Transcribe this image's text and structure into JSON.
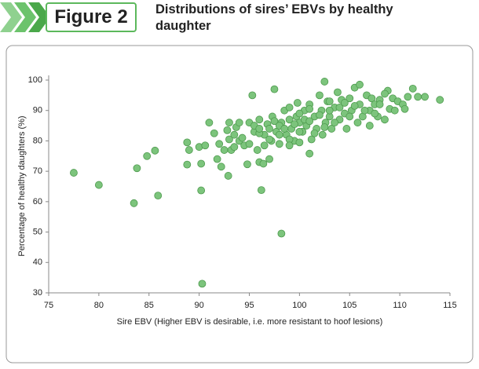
{
  "header": {
    "figure": "Figure 2"
  },
  "chart_data": {
    "type": "scatter",
    "title": "Distributions of sires’ EBVs by healthy daughter",
    "xlabel": "Sire EBV (Higher EBV is desirable, i.e. more resistant to hoof lesions)",
    "ylabel": "Percentage of healthy daughters (%)",
    "color": "#7cc47c",
    "xlim": [
      75,
      115
    ],
    "xticks": [
      75,
      80,
      85,
      90,
      95,
      100,
      105,
      110,
      115
    ],
    "ylim": [
      30,
      100
    ],
    "yticks": [
      30,
      40,
      50,
      60,
      70,
      80,
      90,
      100
    ],
    "x": [
      77.5,
      80,
      83.5,
      83.8,
      84.8,
      85.6,
      85.9,
      88.8,
      88.8,
      89,
      90,
      90.2,
      90.2,
      90.3,
      90.6,
      91,
      91.5,
      91.8,
      92,
      92.2,
      92.5,
      92.8,
      92.9,
      93,
      93,
      93.2,
      93.5,
      93.7,
      94,
      94.3,
      94.5,
      94.8,
      95,
      95,
      95.3,
      95.5,
      95.8,
      96,
      96,
      96.2,
      96.4,
      96.5,
      96.8,
      97,
      97.2,
      97.3,
      97.5,
      97.7,
      98,
      98.2,
      98.2,
      98.5,
      98.7,
      99,
      99.2,
      99.5,
      99.7,
      99.8,
      100,
      100,
      100.3,
      100.5,
      100.7,
      101,
      101,
      101.2,
      101.5,
      101.7,
      102,
      102.2,
      102.3,
      102.5,
      102.6,
      102.8,
      103,
      103.2,
      103.5,
      103.8,
      104,
      104.2,
      104.5,
      104.7,
      105,
      105.2,
      105.5,
      105.8,
      106,
      106,
      106.3,
      106.7,
      107,
      107,
      107.2,
      107.5,
      107.8,
      108,
      108.5,
      108.8,
      109,
      109.3,
      109.8,
      110.3,
      110.5,
      110.8,
      111.3,
      111.8,
      112.5,
      114,
      95.5,
      96,
      96.5,
      97,
      97.5,
      98,
      98.5,
      99,
      99.5,
      100,
      100.5,
      101,
      101.5,
      102,
      102.5,
      103,
      103.5,
      104,
      104.5,
      105,
      105.5,
      106.5,
      107.5,
      108,
      108.5,
      109.5,
      99,
      100,
      101,
      103,
      97,
      98,
      99,
      96,
      94,
      93.5
    ],
    "y": [
      69.5,
      65.5,
      59.5,
      71,
      75,
      76.8,
      62,
      79.5,
      72.2,
      77,
      78,
      72.5,
      63.7,
      33,
      78.5,
      86,
      82.5,
      74,
      79,
      71.5,
      77,
      83.5,
      68.5,
      86,
      80.5,
      77,
      82,
      84.5,
      80,
      81,
      78.5,
      72.3,
      86,
      79,
      95,
      83,
      77,
      87,
      73,
      63.8,
      72.5,
      82,
      85.5,
      74,
      80,
      88,
      97,
      83,
      79,
      86,
      49.5,
      90,
      82,
      87,
      84,
      80,
      88,
      92.5,
      86,
      79.5,
      83,
      90,
      85,
      92,
      75.8,
      80.5,
      88,
      84,
      95,
      90,
      82,
      99.5,
      86,
      93,
      88,
      84,
      91,
      96,
      87,
      93.5,
      89,
      84,
      94,
      90,
      97.5,
      86,
      98.5,
      92,
      88,
      95,
      90,
      85,
      94,
      92,
      88,
      93.5,
      87,
      96.5,
      90.5,
      94,
      93,
      92,
      90.5,
      94.5,
      97.2,
      94.5,
      94.5,
      93.5,
      85,
      82.5,
      78.5,
      84,
      86.5,
      85,
      84,
      80.5,
      85.5,
      83,
      87,
      86.5,
      82.5,
      88.5,
      84.5,
      90,
      86,
      91,
      92.5,
      88,
      91.5,
      90,
      89,
      92,
      95.5,
      90,
      91,
      89,
      90.5,
      93,
      80.5,
      82,
      78.5,
      84,
      86,
      78
    ]
  }
}
